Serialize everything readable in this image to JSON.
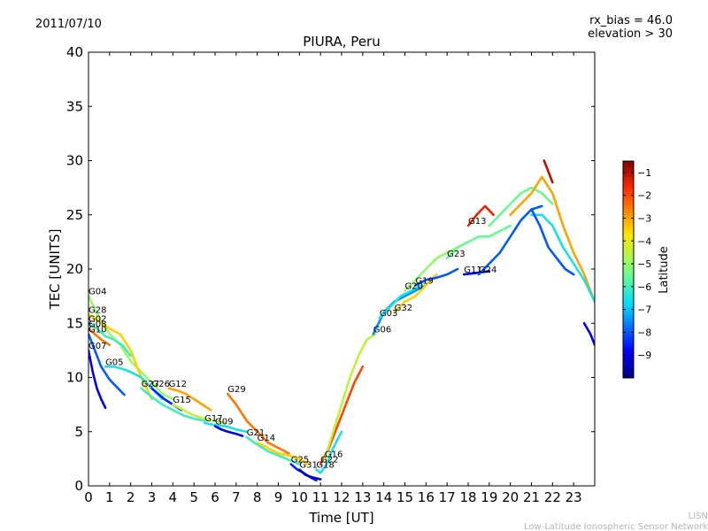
{
  "header": {
    "date": "2011/07/10",
    "note_line1": "rx_bias = 46.0",
    "note_line2": "elevation > 30"
  },
  "credit": {
    "line1": "LISN",
    "line2": "Low-Latitude Ionospheric Sensor Network"
  },
  "colorbar": {
    "label": "Latitude",
    "range": [
      -10,
      -0.5
    ],
    "ticks": [
      -1,
      -2,
      -3,
      -4,
      -5,
      -6,
      -7,
      -8,
      -9
    ],
    "tick_labels": [
      "−1",
      "−2",
      "−3",
      "−4",
      "−5",
      "−6",
      "−7",
      "−8",
      "−9"
    ]
  },
  "chart_data": {
    "type": "scatter",
    "title": "PIURA, Peru",
    "xlabel": "Time [UT]",
    "ylabel": "TEC [UNITS]",
    "xlim": [
      0,
      24
    ],
    "ylim": [
      0,
      40
    ],
    "x_ticks": [
      0,
      1,
      2,
      3,
      4,
      5,
      6,
      7,
      8,
      9,
      10,
      11,
      12,
      13,
      14,
      15,
      16,
      17,
      18,
      19,
      20,
      21,
      22,
      23
    ],
    "y_ticks": [
      0,
      5,
      10,
      15,
      20,
      25,
      30,
      35,
      40
    ],
    "grid": false,
    "series": [
      {
        "name": "G04",
        "color_lat": -5.0,
        "x": [
          0.0,
          0.5,
          1.0,
          1.5,
          2.0,
          2.5,
          3.0,
          3.5,
          4.0
        ],
        "y": [
          17.5,
          15.5,
          14.0,
          13.0,
          11.5,
          10.5,
          9.5,
          8.5,
          8.0
        ]
      },
      {
        "name": "G28",
        "color_lat": -3.5,
        "x": [
          0.0,
          0.5,
          1.0,
          1.5,
          2.0,
          2.5,
          3.0
        ],
        "y": [
          15.8,
          15.2,
          14.5,
          14.0,
          12.5,
          10.0,
          8.0
        ]
      },
      {
        "name": "G02",
        "color_lat": -6.0,
        "x": [
          0.0,
          0.4,
          0.8,
          1.2,
          1.6,
          2.0
        ],
        "y": [
          15.0,
          14.5,
          13.8,
          13.5,
          13.0,
          12.0
        ]
      },
      {
        "name": "G08",
        "color_lat": -2.5,
        "x": [
          0.0,
          0.3,
          0.6,
          1.0
        ],
        "y": [
          14.5,
          14.0,
          13.5,
          13.0
        ]
      },
      {
        "name": "G10",
        "color_lat": -8.0,
        "x": [
          0.0,
          0.3,
          0.6,
          1.0,
          1.4,
          1.7
        ],
        "y": [
          14.0,
          12.5,
          11.0,
          9.8,
          9.0,
          8.4
        ]
      },
      {
        "name": "G07",
        "color_lat": -9.0,
        "x": [
          0.0,
          0.2,
          0.4,
          0.6,
          0.8
        ],
        "y": [
          12.5,
          10.5,
          9.0,
          8.0,
          7.2
        ]
      },
      {
        "name": "G05",
        "color_lat": -6.5,
        "x": [
          0.8,
          1.2,
          1.6,
          2.0,
          2.5,
          3.0,
          3.5
        ],
        "y": [
          11.0,
          11.0,
          10.8,
          10.5,
          10.0,
          9.0,
          8.0
        ]
      },
      {
        "name": "G27",
        "color_lat": -6.0,
        "x": [
          2.5,
          3.0,
          3.5,
          4.0,
          4.5,
          5.0,
          5.5
        ],
        "y": [
          9.0,
          8.2,
          7.5,
          7.0,
          6.5,
          6.2,
          6.0
        ]
      },
      {
        "name": "G26",
        "color_lat": -8.5,
        "x": [
          3.0,
          3.3,
          3.6,
          4.0,
          4.4
        ],
        "y": [
          9.0,
          8.5,
          8.0,
          7.5,
          7.0
        ]
      },
      {
        "name": "G12",
        "color_lat": -3.0,
        "x": [
          3.8,
          4.2,
          4.6,
          5.0,
          5.4,
          5.8
        ],
        "y": [
          9.0,
          8.8,
          8.5,
          8.0,
          7.5,
          7.0
        ]
      },
      {
        "name": "G15",
        "color_lat": -4.5,
        "x": [
          4.0,
          4.5,
          5.0,
          5.5,
          6.0,
          6.5
        ],
        "y": [
          7.5,
          7.0,
          6.5,
          6.2,
          6.0,
          5.8
        ]
      },
      {
        "name": "G29",
        "color_lat": -2.5,
        "x": [
          6.6,
          7.0,
          7.5,
          8.0,
          8.5,
          9.0,
          9.5
        ],
        "y": [
          8.5,
          7.5,
          6.0,
          5.0,
          4.0,
          3.5,
          3.0
        ]
      },
      {
        "name": "G17",
        "color_lat": -6.5,
        "x": [
          5.5,
          6.0,
          6.5,
          7.0,
          7.5
        ],
        "y": [
          5.8,
          5.6,
          5.5,
          5.2,
          5.0
        ]
      },
      {
        "name": "G09",
        "color_lat": -9.0,
        "x": [
          6.0,
          6.3,
          6.6,
          7.0,
          7.3
        ],
        "y": [
          5.5,
          5.2,
          5.0,
          4.8,
          4.6
        ]
      },
      {
        "name": "G14",
        "color_lat": -3.5,
        "x": [
          8.0,
          8.5,
          9.0,
          9.5,
          10.0,
          10.4
        ],
        "y": [
          4.0,
          3.5,
          3.0,
          2.8,
          2.5,
          2.0
        ]
      },
      {
        "name": "G21",
        "color_lat": -6.0,
        "x": [
          7.5,
          8.0,
          8.5,
          9.0,
          9.5,
          10.0
        ],
        "y": [
          4.5,
          3.8,
          3.2,
          2.8,
          2.4,
          2.0
        ]
      },
      {
        "name": "G25",
        "color_lat": -8.5,
        "x": [
          9.6,
          9.9,
          10.2,
          10.5,
          10.8
        ],
        "y": [
          2.0,
          1.5,
          1.2,
          0.8,
          0.5
        ]
      },
      {
        "name": "G31",
        "color_lat": -9.5,
        "x": [
          10.0,
          10.3,
          10.6,
          11.0
        ],
        "y": [
          1.5,
          1.0,
          0.8,
          0.6
        ]
      },
      {
        "name": "G18",
        "color_lat": -6.5,
        "x": [
          10.8,
          11.0,
          11.3,
          11.6,
          12.0
        ],
        "y": [
          1.5,
          1.2,
          2.0,
          3.5,
          5.0
        ]
      },
      {
        "name": "G22",
        "color_lat": -2.0,
        "x": [
          11.0,
          11.4,
          11.8,
          12.2,
          12.6,
          13.0
        ],
        "y": [
          2.0,
          3.5,
          5.5,
          7.5,
          9.5,
          11.0
        ]
      },
      {
        "name": "G16",
        "color_lat": -4.5,
        "x": [
          11.2,
          11.6,
          12.0,
          12.4,
          12.8,
          13.2,
          13.6
        ],
        "y": [
          2.5,
          5.0,
          7.5,
          10.0,
          12.0,
          13.5,
          14.0
        ]
      },
      {
        "name": "G06",
        "color_lat": -7.5,
        "x": [
          13.5,
          14.0,
          14.5,
          15.0,
          15.5,
          16.0
        ],
        "y": [
          14.0,
          16.0,
          17.0,
          17.5,
          18.0,
          18.5
        ]
      },
      {
        "name": "G03",
        "color_lat": -6.5,
        "x": [
          13.8,
          14.3,
          14.8,
          15.3,
          15.8
        ],
        "y": [
          15.5,
          16.5,
          17.5,
          18.0,
          18.5
        ]
      },
      {
        "name": "G32",
        "color_lat": -3.5,
        "x": [
          14.5,
          15.0,
          15.5,
          16.0,
          16.5
        ],
        "y": [
          16.0,
          17.0,
          17.5,
          18.5,
          19.5
        ]
      },
      {
        "name": "G19",
        "color_lat": -8.0,
        "x": [
          15.5,
          16.0,
          16.5,
          17.0,
          17.5
        ],
        "y": [
          18.5,
          19.0,
          19.2,
          19.5,
          20.0
        ]
      },
      {
        "name": "G20",
        "color_lat": -5.0,
        "x": [
          15.0,
          15.5,
          16.0,
          16.5,
          17.0,
          17.5,
          18.0
        ],
        "y": [
          18.0,
          19.0,
          20.0,
          21.0,
          21.5,
          22.0,
          22.5
        ]
      },
      {
        "name": "G23",
        "color_lat": -5.5,
        "x": [
          17.0,
          17.5,
          18.0,
          18.5,
          19.0,
          19.5,
          20.0
        ],
        "y": [
          21.0,
          22.0,
          22.5,
          23.0,
          23.0,
          23.5,
          24.0
        ]
      },
      {
        "name": "G11",
        "color_lat": -9.0,
        "x": [
          17.8,
          18.2,
          18.6,
          19.0
        ],
        "y": [
          19.5,
          19.6,
          19.7,
          19.8
        ]
      },
      {
        "name": "G24",
        "color_lat": -8.0,
        "x": [
          18.5,
          19.0,
          19.5,
          20.0,
          20.5,
          21.0,
          21.5
        ],
        "y": [
          19.5,
          20.5,
          21.5,
          23.0,
          24.5,
          25.5,
          25.8
        ]
      },
      {
        "name": "G13",
        "color_lat": -1.5,
        "x": [
          18.0,
          18.4,
          18.8,
          19.2
        ],
        "y": [
          24.0,
          25.0,
          25.8,
          25.0
        ]
      },
      {
        "name": "",
        "color_lat": -5.5,
        "x": [
          19.0,
          19.5,
          20.0,
          20.5,
          21.0,
          21.5,
          22.0
        ],
        "y": [
          24.0,
          25.0,
          26.0,
          27.0,
          27.5,
          27.0,
          26.0
        ]
      },
      {
        "name": "",
        "color_lat": -3.0,
        "x": [
          20.0,
          20.5,
          21.0,
          21.5,
          22.0,
          22.5,
          23.0,
          23.5,
          24.0
        ],
        "y": [
          25.0,
          26.0,
          27.0,
          28.5,
          27.0,
          24.0,
          21.5,
          19.5,
          17.0
        ]
      },
      {
        "name": "",
        "color_lat": -1.0,
        "x": [
          21.6,
          21.8,
          22.0
        ],
        "y": [
          30.0,
          29.0,
          28.0
        ]
      },
      {
        "name": "",
        "color_lat": -6.5,
        "x": [
          21.0,
          21.5,
          22.0,
          22.5,
          23.0,
          23.5,
          24.0
        ],
        "y": [
          25.0,
          25.0,
          24.0,
          22.0,
          20.5,
          19.0,
          17.0
        ]
      },
      {
        "name": "",
        "color_lat": -8.0,
        "x": [
          21.0,
          21.4,
          21.8,
          22.2,
          22.6,
          23.0
        ],
        "y": [
          25.5,
          24.0,
          22.0,
          21.0,
          20.0,
          19.5
        ]
      },
      {
        "name": "",
        "color_lat": -9.0,
        "x": [
          23.5,
          23.8,
          24.0
        ],
        "y": [
          15.0,
          14.0,
          13.0
        ]
      }
    ]
  }
}
